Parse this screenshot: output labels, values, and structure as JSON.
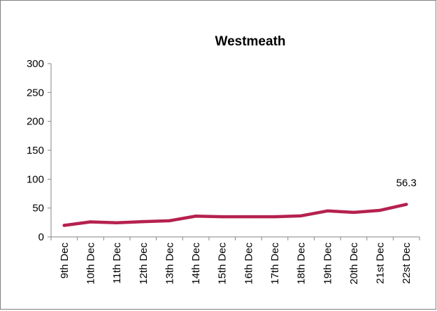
{
  "chart_data": {
    "type": "line",
    "title": "Westmeath",
    "xlabel": "",
    "ylabel": "",
    "categories": [
      "9th Dec",
      "10th Dec",
      "11th Dec",
      "12th Dec",
      "13th Dec",
      "14th Dec",
      "15th Dec",
      "16th Dec",
      "17th Dec",
      "18th Dec",
      "19th Dec",
      "20th Dec",
      "21st Dec",
      "22st Dec"
    ],
    "series": [
      {
        "values": [
          20,
          26,
          24.5,
          26.5,
          28,
          36,
          35,
          35,
          35,
          36.5,
          45,
          42.5,
          46,
          56.3
        ],
        "color": "#b5214f"
      }
    ],
    "data_labels": [
      {
        "index": 13,
        "text": "56.3"
      }
    ],
    "ylim": [
      0,
      300
    ],
    "yticks": [
      "0",
      "50",
      "100",
      "150",
      "200",
      "250",
      "300"
    ],
    "grid": false,
    "legend": "none"
  }
}
